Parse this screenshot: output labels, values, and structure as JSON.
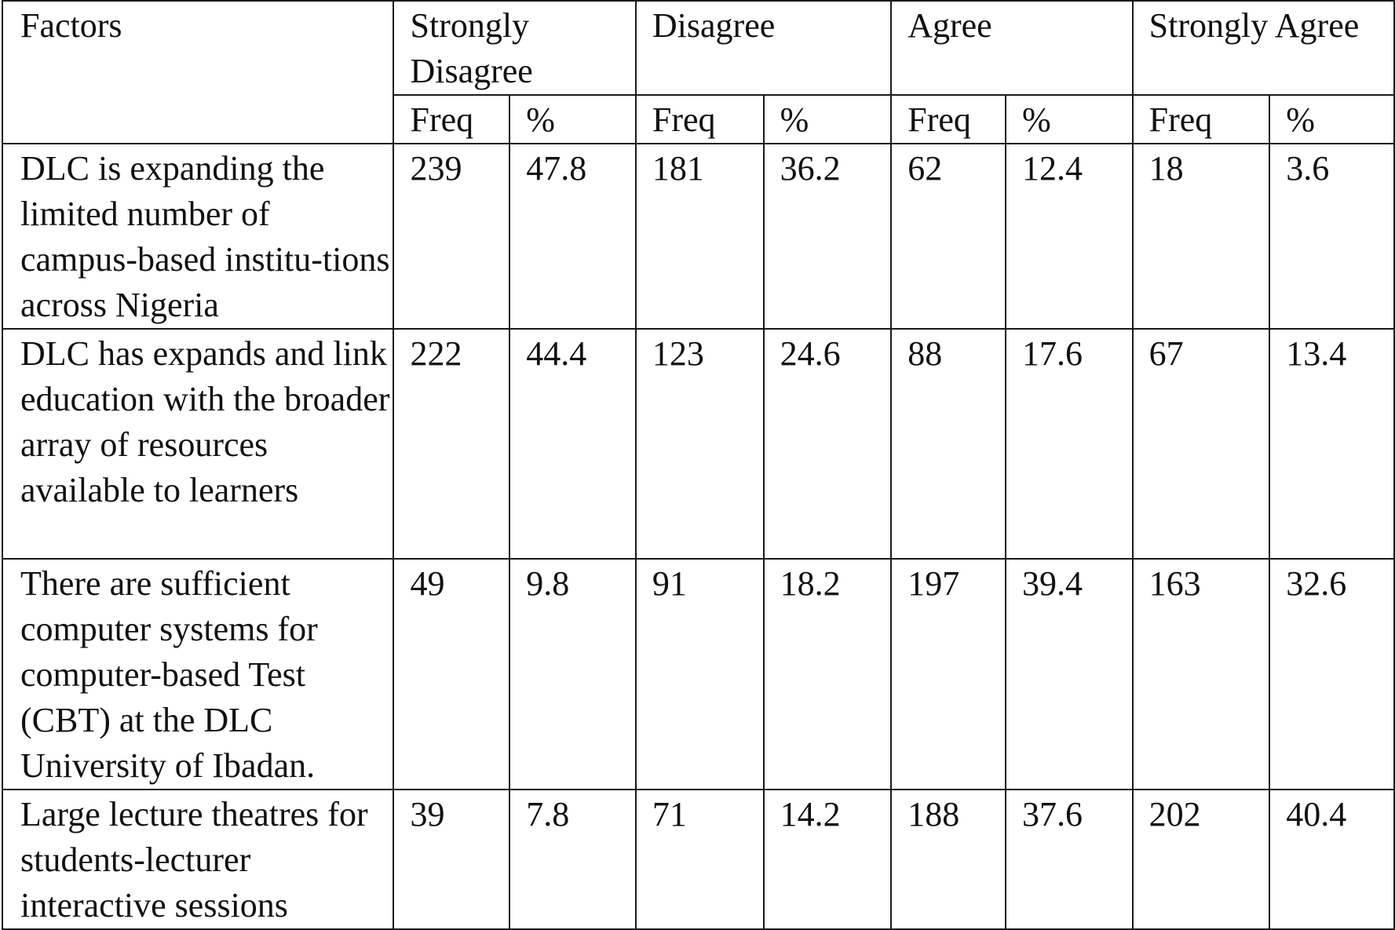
{
  "table": {
    "header": {
      "factors": "Factors",
      "groups": [
        "Strongly Disagree",
        "Disagree",
        "Agree",
        "Strongly Agree"
      ],
      "sub_freq": "Freq",
      "sub_pct": "%"
    },
    "rows": [
      {
        "factor": "DLC is expanding the limited number of campus-based institu-tions across Nigeria",
        "values": [
          "239",
          "47.8",
          "181",
          "36.2",
          "62",
          "12.4",
          "18",
          "3.6"
        ]
      },
      {
        "factor": "DLC has expands and link education with the broader array of resources available to learners",
        "values": [
          "222",
          "44.4",
          "123",
          "24.6",
          "88",
          "17.6",
          "67",
          "13.4"
        ]
      },
      {
        "factor": "There are sufficient computer systems for computer-based Test (CBT) at the DLC University of Ibadan.",
        "values": [
          "49",
          "9.8",
          "91",
          "18.2",
          "197",
          "39.4",
          "163",
          "32.6"
        ]
      },
      {
        "factor": "Large lecture theatres for students-lecturer interactive sessions",
        "values": [
          "39",
          "7.8",
          "71",
          "14.2",
          "188",
          "37.6",
          "202",
          "40.4"
        ]
      }
    ]
  }
}
